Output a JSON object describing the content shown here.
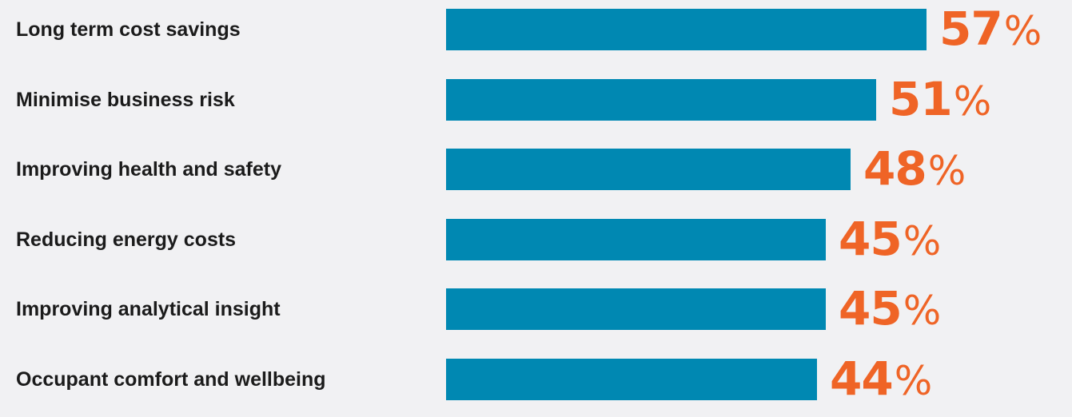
{
  "chart_data": {
    "type": "bar",
    "orientation": "horizontal",
    "categories": [
      "Long term cost savings",
      "Minimise business risk",
      "Improving health and safety",
      "Reducing energy costs",
      "Improving analytical insight",
      "Occupant comfort and wellbeing"
    ],
    "values": [
      57,
      51,
      48,
      45,
      45,
      44
    ],
    "value_suffix": "%",
    "title": "",
    "xlabel": "",
    "ylabel": "",
    "xlim": [
      0,
      100
    ],
    "grid": false,
    "legend": "none",
    "colors": {
      "bar": "#0088b2",
      "value_label": "#ef6426",
      "category_label": "#1b1b1b",
      "background": "#f1f1f3"
    }
  }
}
